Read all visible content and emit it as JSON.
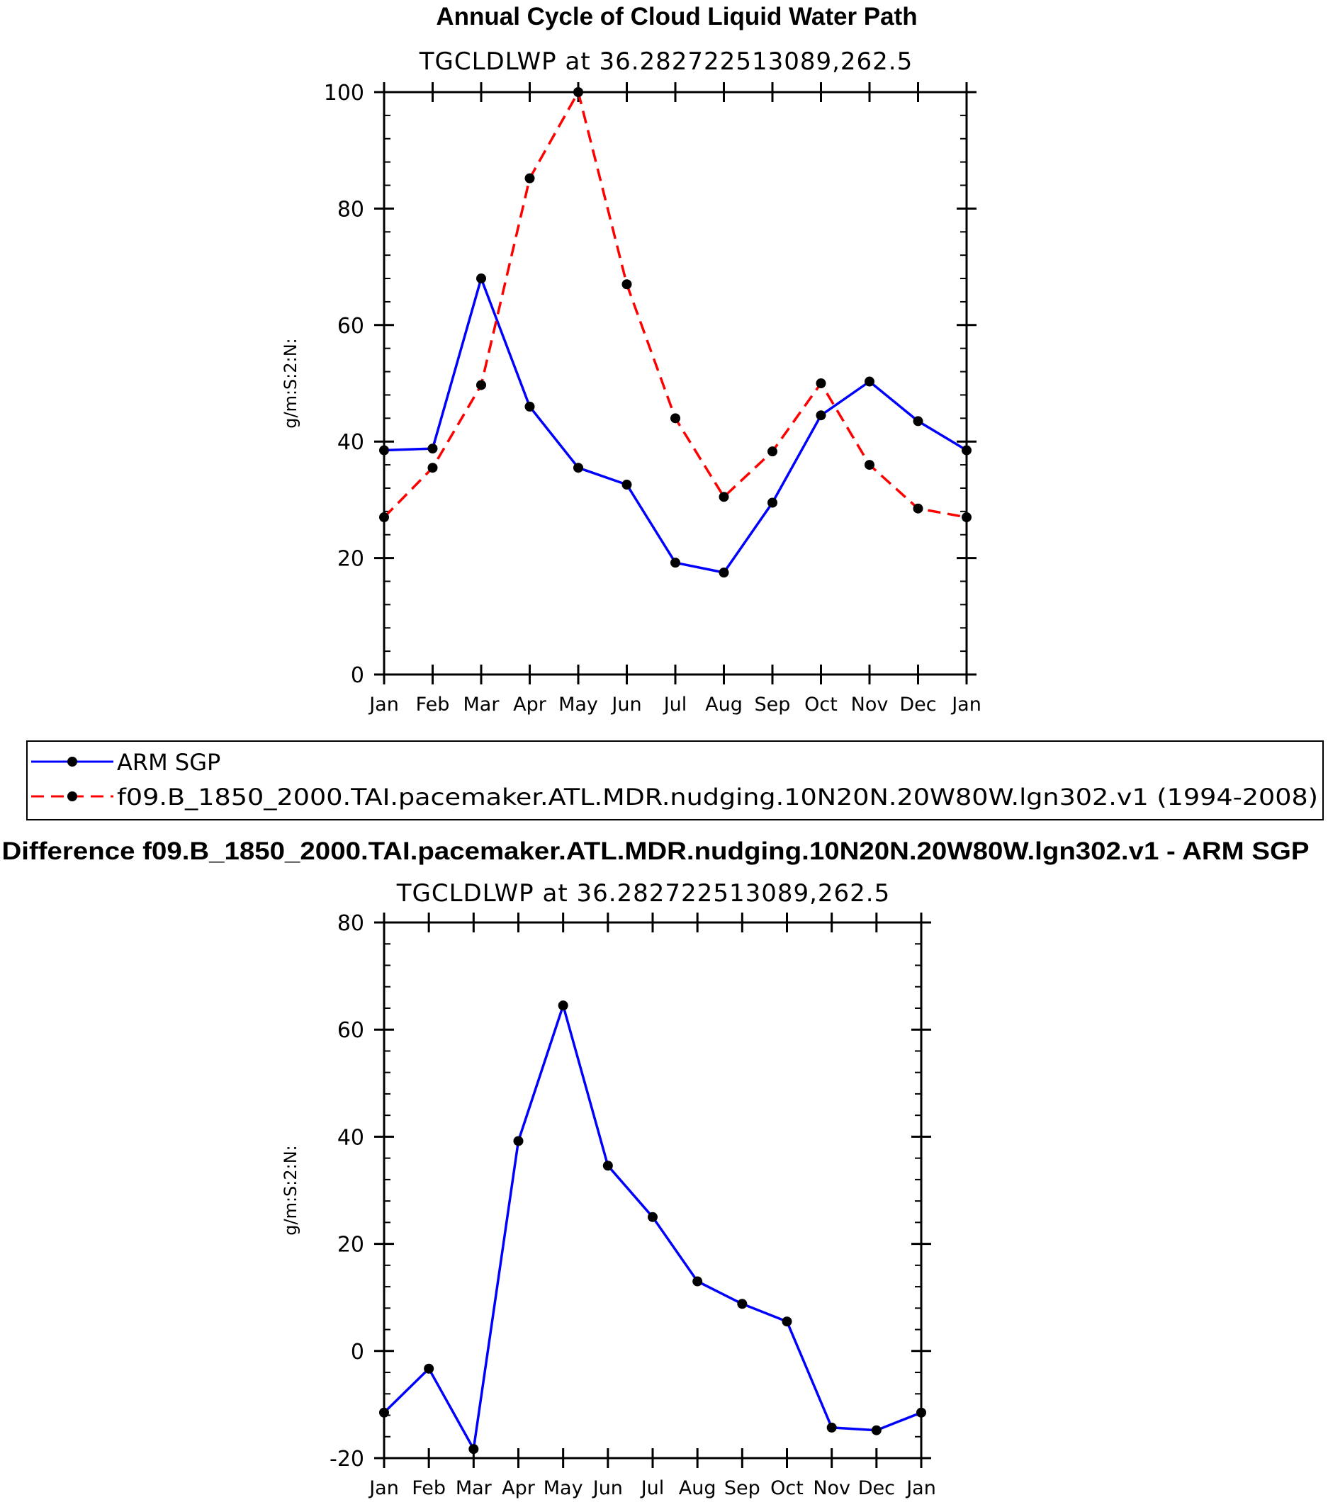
{
  "chart_data": [
    {
      "type": "line",
      "title": "Annual Cycle of Cloud Liquid Water Path",
      "subtitle": "TGCLDLWP  at  36.282722513089,262.5",
      "xlabel": "",
      "ylabel": "g/m:S:2:N:",
      "categories": [
        "Jan",
        "Feb",
        "Mar",
        "Apr",
        "May",
        "Jun",
        "Jul",
        "Aug",
        "Sep",
        "Oct",
        "Nov",
        "Dec",
        "Jan"
      ],
      "ylim": [
        0,
        100
      ],
      "yticks": [
        0,
        20,
        40,
        60,
        80,
        100
      ],
      "series": [
        {
          "name": "ARM SGP",
          "color": "#0000ff",
          "dash": "solid",
          "values": [
            38.5,
            38.8,
            68.0,
            46.0,
            35.5,
            32.6,
            19.2,
            17.5,
            29.5,
            44.5,
            50.3,
            43.5,
            38.5
          ]
        },
        {
          "name": "f09.B_1850_2000.TAI.pacemaker.ATL.MDR.nudging.10N20N.20W80W.lgn302.v1  (1994-2008)",
          "color": "#ff0000",
          "dash": "dashed",
          "values": [
            27.0,
            35.5,
            49.7,
            85.2,
            100.0,
            67.0,
            44.0,
            30.5,
            38.3,
            50.0,
            36.0,
            28.5,
            27.0
          ]
        }
      ],
      "legend": {
        "placement": "bottom",
        "entries": [
          "ARM SGP",
          "f09.B_1850_2000.TAI.pacemaker.ATL.MDR.nudging.10N20N.20W80W.lgn302.v1  (1994-2008)"
        ]
      }
    },
    {
      "type": "line",
      "title": "Difference f09.B_1850_2000.TAI.pacemaker.ATL.MDR.nudging.10N20N.20W80W.lgn302.v1 - ARM SGP",
      "subtitle": "TGCLDLWP  at  36.282722513089,262.5",
      "xlabel": "",
      "ylabel": "g/m:S:2:N:",
      "categories": [
        "Jan",
        "Feb",
        "Mar",
        "Apr",
        "May",
        "Jun",
        "Jul",
        "Aug",
        "Sep",
        "Oct",
        "Nov",
        "Dec",
        "Jan"
      ],
      "ylim": [
        -20,
        80
      ],
      "yticks": [
        -20,
        0,
        20,
        40,
        60,
        80
      ],
      "series": [
        {
          "name": "Difference",
          "color": "#0000ff",
          "dash": "solid",
          "values": [
            -11.5,
            -3.3,
            -18.3,
            39.2,
            64.5,
            34.6,
            25.0,
            13.0,
            8.8,
            5.5,
            -14.3,
            -14.8,
            -11.5
          ]
        }
      ]
    }
  ]
}
